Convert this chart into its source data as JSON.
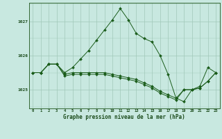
{
  "title": "Graphe pression niveau de la mer (hPa)",
  "bg_color": "#c8e8e0",
  "plot_bg_color": "#c8e8e0",
  "grid_color": "#a0c8b8",
  "line_color": "#1a5c1a",
  "marker_color": "#1a5c1a",
  "hours": [
    0,
    1,
    2,
    3,
    4,
    5,
    6,
    7,
    8,
    9,
    10,
    11,
    12,
    13,
    14,
    15,
    16,
    17,
    18,
    19,
    20,
    21,
    22,
    23
  ],
  "series1": [
    1025.5,
    1025.5,
    1025.75,
    1025.75,
    1025.5,
    1025.65,
    1025.9,
    1026.15,
    1026.45,
    1026.75,
    1027.05,
    1027.38,
    1027.05,
    1026.65,
    1026.5,
    1026.4,
    1026.0,
    1025.45,
    1024.75,
    1024.65,
    1025.0,
    1025.1,
    1025.65,
    1025.5
  ],
  "series2": [
    1025.5,
    1025.5,
    1025.75,
    1025.75,
    1025.45,
    1025.5,
    1025.5,
    1025.5,
    1025.5,
    1025.5,
    1025.45,
    1025.4,
    1025.35,
    1025.3,
    1025.2,
    1025.1,
    1024.95,
    1024.85,
    1024.75,
    1025.0,
    1025.0,
    1025.05,
    1025.25,
    1025.5
  ],
  "series3": [
    1025.5,
    1025.5,
    1025.75,
    1025.75,
    1025.4,
    1025.45,
    1025.45,
    1025.45,
    1025.45,
    1025.45,
    1025.4,
    1025.35,
    1025.3,
    1025.25,
    1025.15,
    1025.05,
    1024.9,
    1024.8,
    1024.7,
    1025.0,
    1025.0,
    1025.05,
    1025.25,
    1025.5
  ],
  "ylim": [
    1024.45,
    1027.55
  ],
  "yticks": [
    1025,
    1026,
    1027
  ],
  "ytick_labels": [
    "1025",
    "1026",
    "1027"
  ]
}
